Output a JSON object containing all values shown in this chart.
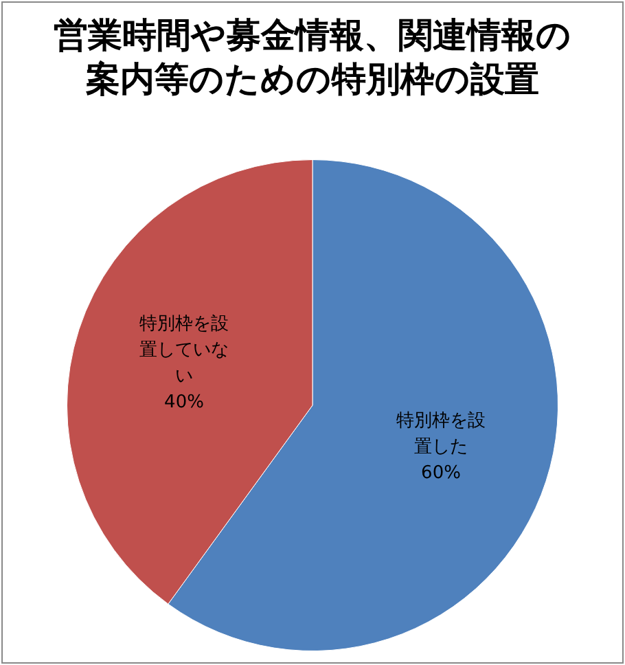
{
  "chart_data": {
    "type": "pie",
    "title": "営業時間や募金情報、関連情報の案内等のための特別枠の設置",
    "categories": [
      "特別枠を設置した",
      "特別枠を設置していない"
    ],
    "values": [
      60,
      40
    ],
    "colors": [
      "#4f81bd",
      "#c0504d"
    ],
    "value_labels": [
      "60%",
      "40%"
    ]
  }
}
